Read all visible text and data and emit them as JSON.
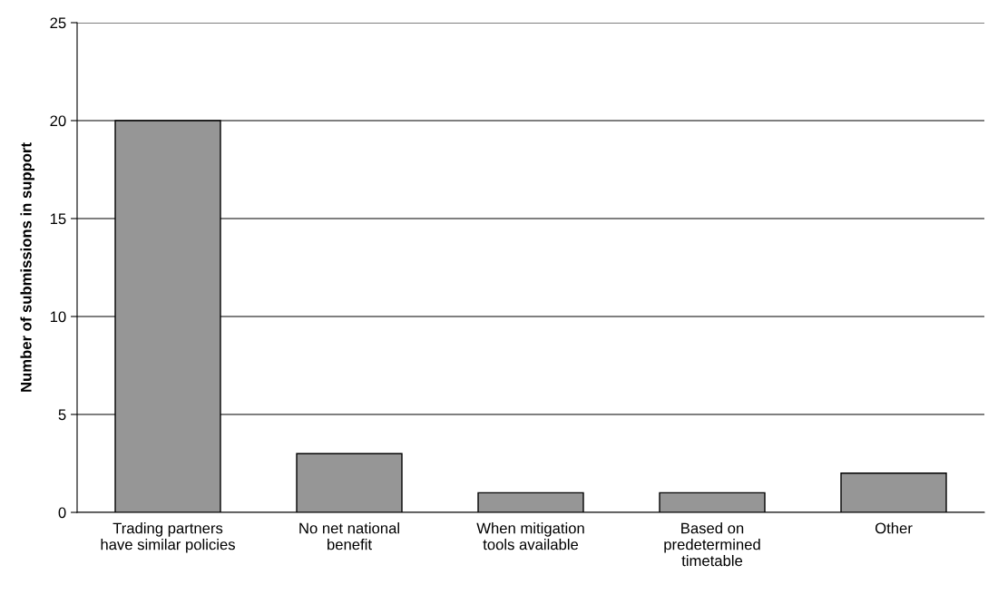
{
  "chart_data": {
    "type": "bar",
    "ylabel": "Number of submissions in support",
    "categories": [
      "Trading partners\nhave similar policies",
      "No net national\nbenefit",
      "When mitigation\ntools available",
      "Based on\npredetermined\ntimetable",
      "Other"
    ],
    "values": [
      20,
      3,
      1,
      1,
      2
    ],
    "color": "#969696",
    "ylim": [
      0,
      25
    ],
    "yticks": [
      0,
      5,
      10,
      15,
      20,
      25
    ],
    "grid": "y"
  }
}
